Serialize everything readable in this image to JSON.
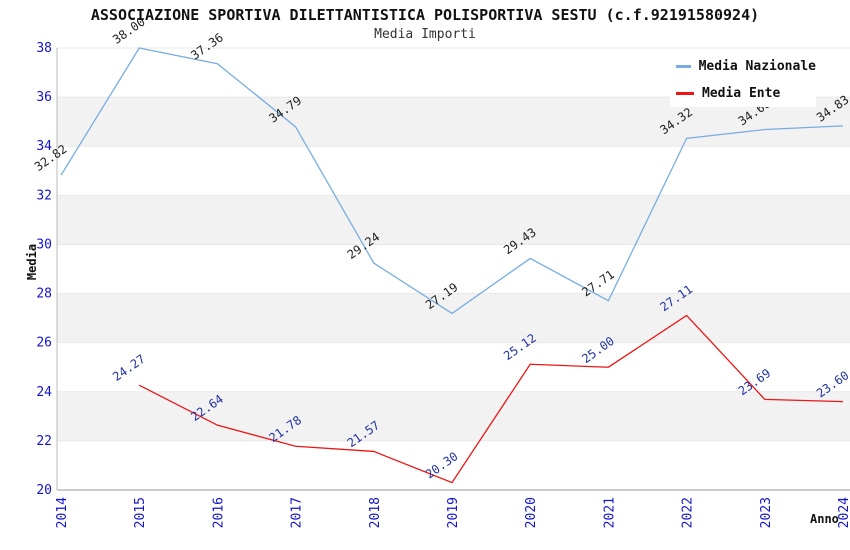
{
  "title": "ASSOCIAZIONE SPORTIVA DILETTANTISTICA POLISPORTIVA SESTU (c.f.92191580924)",
  "subtitle": "Media Importi",
  "legend": {
    "items": [
      {
        "label": "Media Nazionale",
        "color": "#79ade1"
      },
      {
        "label": "Media Ente",
        "color": "#ee1515"
      }
    ]
  },
  "axes": {
    "xlabel": "Anno",
    "ylabel": "Media"
  },
  "chart_data": {
    "type": "line",
    "x": [
      2014,
      2015,
      2016,
      2017,
      2018,
      2019,
      2020,
      2021,
      2022,
      2023,
      2024
    ],
    "series": [
      {
        "name": "Media Nazionale",
        "color": "#79ade1",
        "label_color": "#222222",
        "start_year": 2014,
        "values": [
          32.82,
          38.0,
          37.36,
          34.79,
          29.24,
          27.19,
          29.43,
          27.71,
          34.32,
          34.68,
          34.83
        ]
      },
      {
        "name": "Media Ente",
        "color": "#ee1515",
        "label_color": "#2233a0",
        "start_year": 2015,
        "values": [
          24.27,
          22.64,
          21.78,
          21.57,
          20.3,
          25.12,
          25.0,
          27.11,
          23.69,
          23.6
        ]
      }
    ],
    "xlabel": "Anno",
    "ylabel": "Media",
    "ylim": [
      20,
      38
    ],
    "ytick_step": 2,
    "yticks": [
      20,
      22,
      24,
      26,
      28,
      30,
      32,
      34,
      36,
      38
    ],
    "tick_color": "#1414cc",
    "band_colors": [
      "#ffffff",
      "#f2f2f2"
    ],
    "grid_color": "#e8e8e8",
    "axis_line_color": "#999999",
    "grid": true,
    "legend_position": "top-right"
  }
}
